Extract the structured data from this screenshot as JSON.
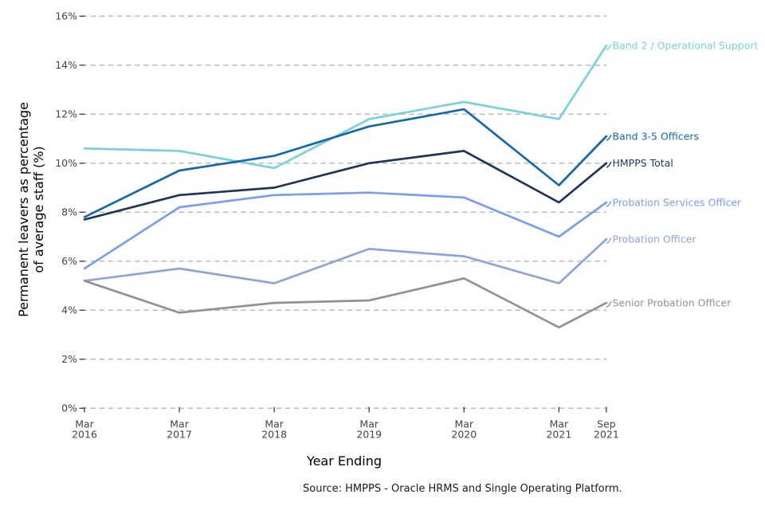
{
  "chart_data": {
    "type": "line",
    "title": "",
    "xlabel": "Year Ending",
    "ylabel_line1": "Permanent leavers as percentage",
    "ylabel_line2": "of average staff (%)",
    "x_tick_labels": [
      [
        "Mar",
        "2016"
      ],
      [
        "Mar",
        "2017"
      ],
      [
        "Mar",
        "2018"
      ],
      [
        "Mar",
        "2019"
      ],
      [
        "Mar",
        "2020"
      ],
      [
        "Mar",
        "2021"
      ],
      [
        "Sep",
        "2021"
      ]
    ],
    "x_months": [
      0,
      12,
      24,
      36,
      48,
      60,
      66
    ],
    "y_tick_labels": [
      "0%",
      "2%",
      "4%",
      "6%",
      "8%",
      "10%",
      "12%",
      "14%",
      "16%"
    ],
    "y_tick_values": [
      0,
      2,
      4,
      6,
      8,
      10,
      12,
      14,
      16
    ],
    "ylim": [
      0,
      16
    ],
    "grid": "horizontal-dashed",
    "legend_position": "right-edge-direct-labels",
    "series": [
      {
        "name": "Band 2 / Operational Support",
        "color": "#78D1DE",
        "values": [
          10.6,
          10.5,
          9.8,
          11.8,
          12.5,
          11.8,
          14.8
        ]
      },
      {
        "name": "Band 3-5 Officers",
        "color": "#1568A9",
        "values": [
          7.8,
          9.7,
          10.3,
          11.5,
          12.2,
          9.1,
          11.1
        ]
      },
      {
        "name": "HMPPS Total",
        "color": "#1F3557",
        "values": [
          7.7,
          8.7,
          9.0,
          10.0,
          10.5,
          8.4,
          10.0
        ]
      },
      {
        "name": "Probation Services Officer",
        "color": "#7A9DEF",
        "values": [
          5.7,
          8.2,
          8.7,
          8.8,
          8.6,
          7.0,
          8.4
        ]
      },
      {
        "name": "Probation Officer",
        "color": "#8CA5D6",
        "values": [
          5.2,
          5.7,
          5.1,
          6.5,
          6.2,
          5.1,
          6.9
        ]
      },
      {
        "name": "Senior Probation Officer",
        "color": "#929292",
        "values": [
          5.2,
          3.9,
          4.3,
          4.4,
          5.3,
          3.3,
          4.3
        ]
      }
    ]
  },
  "source_note": "Source: HMPPS - Oracle HRMS and Single Operating Platform.",
  "styles": {
    "grid_color": "#bcbcbc",
    "tick_color": "#3c3c3c",
    "tick_label_color": "#444444",
    "text_color": "#000000",
    "background": "#ffffff"
  }
}
